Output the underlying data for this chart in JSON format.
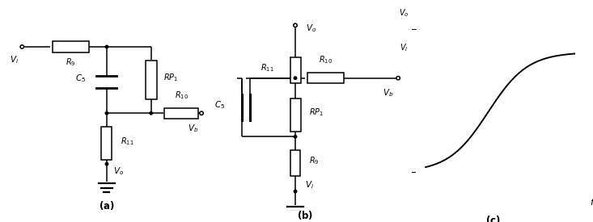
{
  "fig_width": 7.33,
  "fig_height": 2.75,
  "dpi": 100,
  "background": "white"
}
